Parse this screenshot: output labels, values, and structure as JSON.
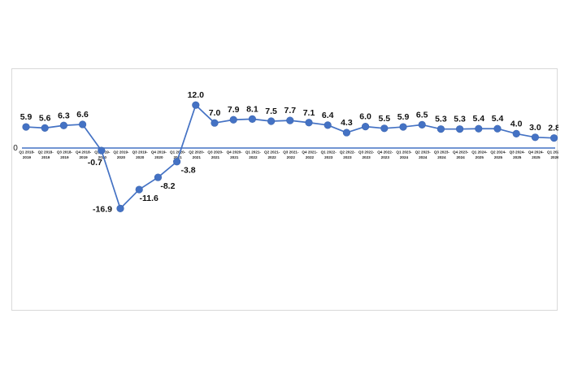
{
  "chart_data": {
    "type": "line",
    "title": "",
    "xlabel": "",
    "ylabel": "",
    "y_axis_label": "0",
    "ylim": [
      -20,
      14
    ],
    "grid": false,
    "legend": "none",
    "colors": {
      "line": "#4472c4",
      "marker": "#4472c4",
      "axis": "#4472c4"
    },
    "categories": [
      [
        "Q1 2018-",
        "2019"
      ],
      [
        "Q2 2018-",
        "2019"
      ],
      [
        "Q3 2018-",
        "2019"
      ],
      [
        "Q4 2018-",
        "2019"
      ],
      [
        "Q1 2019-",
        "2020"
      ],
      [
        "Q2 2019-",
        "2020"
      ],
      [
        "Q3 2019-",
        "2020"
      ],
      [
        "Q4 2019-",
        "2020"
      ],
      [
        "Q1 2020-",
        "2021"
      ],
      [
        "Q2 2020-",
        "2021"
      ],
      [
        "Q3 2020-",
        "2021"
      ],
      [
        "Q4 2020-",
        "2021"
      ],
      [
        "Q1 2021-",
        "2022"
      ],
      [
        "Q2 2021-",
        "2022"
      ],
      [
        "Q3 2021-",
        "2022"
      ],
      [
        "Q4 2021-",
        "2022"
      ],
      [
        "Q1 2022-",
        "2023"
      ],
      [
        "Q2 2022-",
        "2023"
      ],
      [
        "Q3 2022-",
        "2023"
      ],
      [
        "Q4 2022-",
        "2023"
      ],
      [
        "Q1 2023-",
        "2024"
      ],
      [
        "Q2 2023-",
        "2024"
      ],
      [
        "Q3 2023-",
        "2024"
      ],
      [
        "Q4 2023-",
        "2024"
      ],
      [
        "Q1 2024-",
        "2025"
      ],
      [
        "Q2 2024-",
        "2025"
      ],
      [
        "Q3 2024-",
        "2025"
      ],
      [
        "Q4 2024-",
        "2025"
      ],
      [
        "Q1 2025-",
        "2026"
      ]
    ],
    "values": [
      5.9,
      5.6,
      6.3,
      6.6,
      -0.7,
      -16.9,
      -11.6,
      -8.2,
      -3.8,
      12.0,
      7.0,
      7.9,
      8.1,
      7.5,
      7.7,
      7.1,
      6.4,
      4.3,
      6.0,
      5.5,
      5.9,
      6.5,
      5.3,
      5.3,
      5.4,
      5.4,
      4.0,
      3.0,
      2.8
    ],
    "data_labels": [
      "5.9",
      "5.6",
      "6.3",
      "6.6",
      "-0.7",
      "-16.9",
      "-11.6",
      "-8.2",
      "-3.8",
      "12.0",
      "7.0",
      "7.9",
      "8.1",
      "7.5",
      "7.7",
      "7.1",
      "6.4",
      "4.3",
      "6.0",
      "5.5",
      "5.9",
      "6.5",
      "5.3",
      "5.3",
      "5.4",
      "5.4",
      "4.0",
      "3.0",
      "2.8"
    ]
  }
}
